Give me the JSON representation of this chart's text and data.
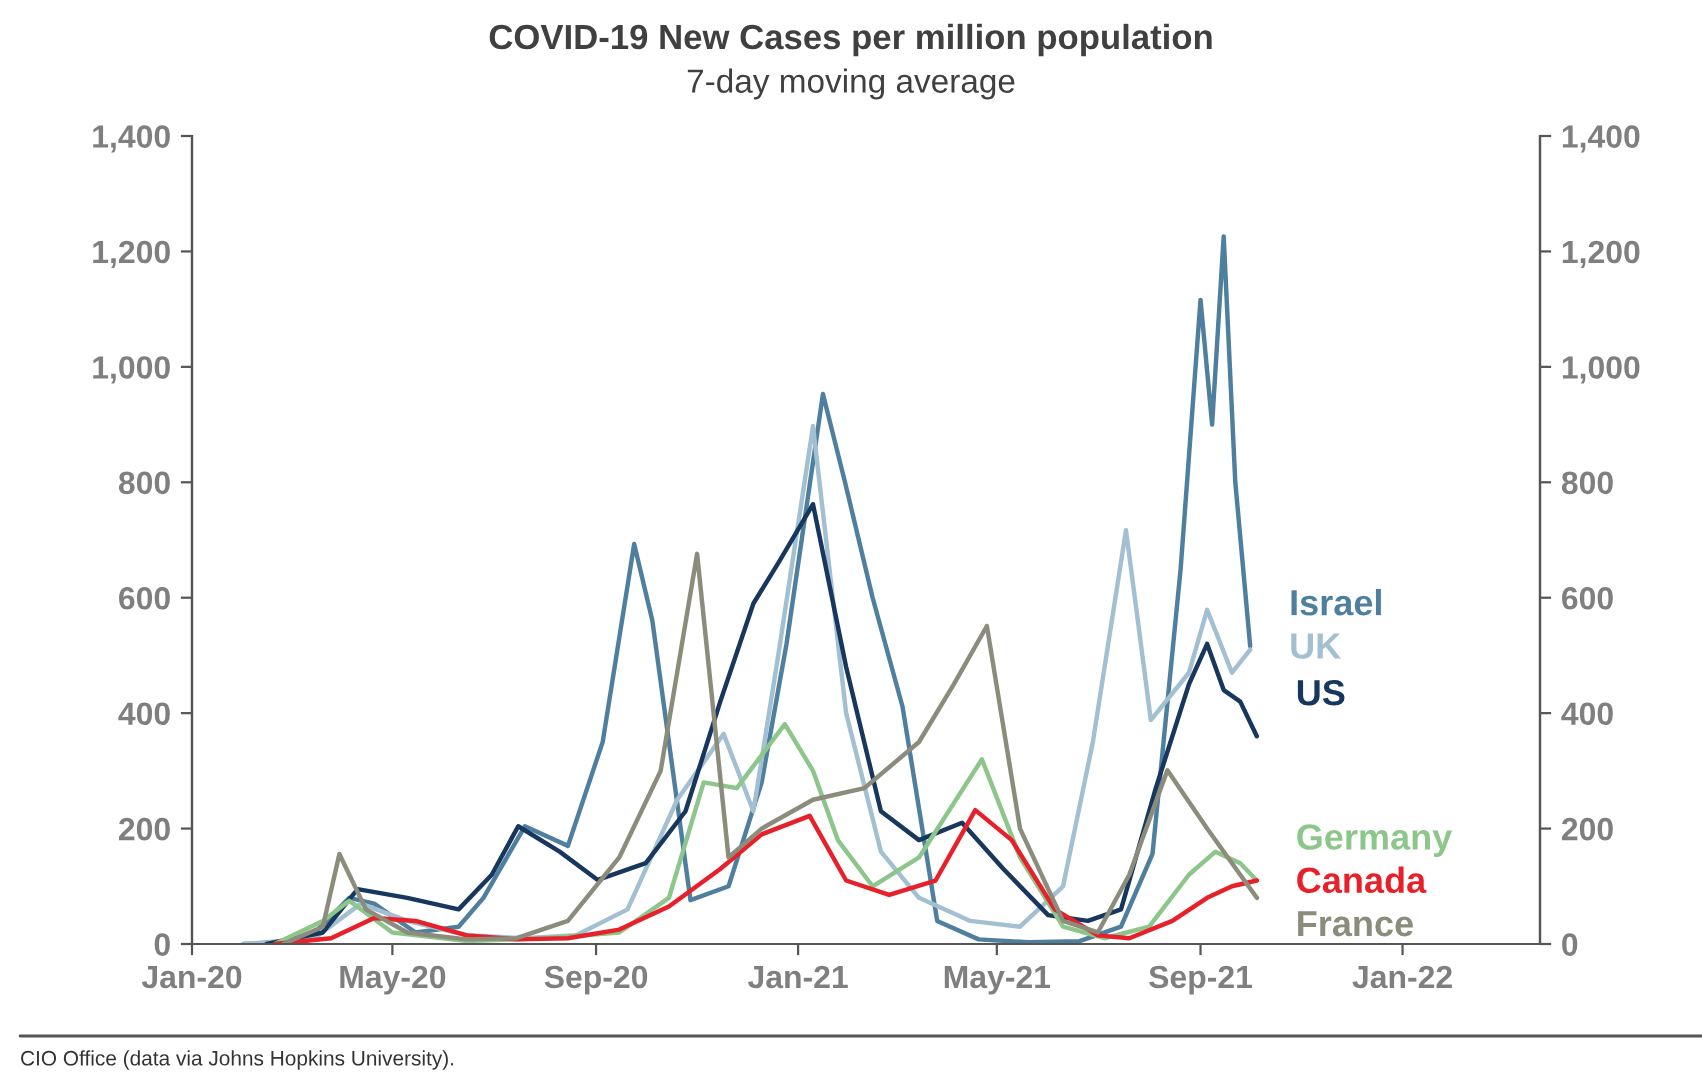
{
  "chart_data": {
    "type": "line",
    "title": "COVID-19 New Cases per million population",
    "subtitle": "7-day moving average",
    "annotations": [
      "CIO Office (data via Johns Hopkins University)."
    ],
    "legend": false,
    "grid": false,
    "marker": "none",
    "line_style": "solid",
    "xlim": [
      "2020-01-01",
      "2022-03-25"
    ],
    "xticks": [
      {
        "value": "2020-01-01",
        "label": "Jan-20"
      },
      {
        "value": "2020-05-01",
        "label": "May-20"
      },
      {
        "value": "2020-09-01",
        "label": "Sep-20"
      },
      {
        "value": "2021-01-01",
        "label": "Jan-21"
      },
      {
        "value": "2021-05-01",
        "label": "May-21"
      },
      {
        "value": "2021-09-01",
        "label": "Sep-21"
      },
      {
        "value": "2022-01-01",
        "label": "Jan-22"
      }
    ],
    "ylim": [
      0,
      1400
    ],
    "yticks": [
      {
        "value": 0,
        "label": "0"
      },
      {
        "value": 200,
        "label": "200"
      },
      {
        "value": 400,
        "label": "400"
      },
      {
        "value": 600,
        "label": "600"
      },
      {
        "value": 800,
        "label": "800"
      },
      {
        "value": 1000,
        "label": "1,000"
      },
      {
        "value": 1200,
        "label": "1,200"
      },
      {
        "value": 1400,
        "label": "1,400"
      }
    ],
    "y2lim": [
      0,
      1400
    ],
    "y2ticks": [
      {
        "value": 0,
        "label": "0"
      },
      {
        "value": 200,
        "label": "200"
      },
      {
        "value": 400,
        "label": "400"
      },
      {
        "value": 600,
        "label": "600"
      },
      {
        "value": 800,
        "label": "800"
      },
      {
        "value": 1000,
        "label": "1,000"
      },
      {
        "value": 1200,
        "label": "1,200"
      },
      {
        "value": 1400,
        "label": "1,400"
      }
    ],
    "series": [
      {
        "name": "Israel",
        "color": "#4f7f9f",
        "x": [
          "2020-02-01",
          "2020-03-10",
          "2020-04-05",
          "2020-04-20",
          "2020-05-15",
          "2020-06-10",
          "2020-06-25",
          "2020-07-20",
          "2020-08-15",
          "2020-09-05",
          "2020-09-24",
          "2020-10-05",
          "2020-10-28",
          "2020-11-20",
          "2020-12-10",
          "2020-12-25",
          "2021-01-16",
          "2021-01-29",
          "2021-02-15",
          "2021-03-05",
          "2021-03-26",
          "2021-04-20",
          "2021-05-20",
          "2021-06-20",
          "2021-07-15",
          "2021-08-03",
          "2021-08-20",
          "2021-09-01",
          "2021-09-08",
          "2021-09-15",
          "2021-09-22",
          "2021-10-01"
        ],
        "values": [
          0,
          5,
          80,
          70,
          20,
          30,
          80,
          204,
          170,
          350,
          693,
          560,
          76,
          100,
          280,
          520,
          953,
          804,
          600,
          412,
          40,
          8,
          3,
          5,
          30,
          156,
          650,
          1116,
          900,
          1226,
          800,
          516
        ]
      },
      {
        "name": "UK",
        "color": "#a3bfd2",
        "x": [
          "2020-02-01",
          "2020-03-15",
          "2020-04-12",
          "2020-05-10",
          "2020-06-15",
          "2020-07-20",
          "2020-08-20",
          "2020-09-20",
          "2020-10-20",
          "2020-11-17",
          "2020-12-05",
          "2020-12-20",
          "2021-01-10",
          "2021-01-30",
          "2021-02-20",
          "2021-03-15",
          "2021-04-15",
          "2021-05-15",
          "2021-06-10",
          "2021-06-28",
          "2021-07-18",
          "2021-08-02",
          "2021-08-25",
          "2021-09-05",
          "2021-09-20",
          "2021-10-01"
        ],
        "values": [
          0,
          10,
          70,
          40,
          15,
          10,
          15,
          60,
          250,
          364,
          230,
          500,
          897,
          400,
          160,
          80,
          40,
          30,
          100,
          350,
          717,
          388,
          470,
          579,
          470,
          510
        ]
      },
      {
        "name": "US",
        "color": "#17375e",
        "x": [
          "2020-02-15",
          "2020-03-20",
          "2020-04-10",
          "2020-05-10",
          "2020-06-10",
          "2020-06-30",
          "2020-07-16",
          "2020-08-10",
          "2020-09-02",
          "2020-10-01",
          "2020-10-25",
          "2020-11-15",
          "2020-12-05",
          "2020-12-20",
          "2021-01-10",
          "2021-01-30",
          "2021-02-20",
          "2021-03-15",
          "2021-04-10",
          "2021-05-05",
          "2021-06-01",
          "2021-06-25",
          "2021-07-15",
          "2021-08-05",
          "2021-08-25",
          "2021-09-05",
          "2021-09-15",
          "2021-09-25",
          "2021-10-05"
        ],
        "values": [
          0,
          20,
          95,
          80,
          60,
          120,
          204,
          160,
          111,
          140,
          230,
          420,
          590,
          660,
          762,
          480,
          230,
          180,
          210,
          130,
          50,
          40,
          60,
          270,
          450,
          520,
          440,
          420,
          360
        ]
      },
      {
        "name": "Germany",
        "color": "#8dc68a",
        "x": [
          "2020-02-20",
          "2020-03-20",
          "2020-04-05",
          "2020-05-01",
          "2020-06-15",
          "2020-08-01",
          "2020-09-15",
          "2020-10-15",
          "2020-11-05",
          "2020-11-25",
          "2020-12-24",
          "2021-01-10",
          "2021-01-25",
          "2021-02-15",
          "2021-03-15",
          "2021-04-22",
          "2021-05-15",
          "2021-06-10",
          "2021-07-05",
          "2021-08-01",
          "2021-08-25",
          "2021-09-10",
          "2021-09-25",
          "2021-10-05"
        ],
        "values": [
          0,
          40,
          75,
          20,
          5,
          10,
          20,
          80,
          280,
          270,
          381,
          300,
          180,
          100,
          150,
          320,
          150,
          30,
          10,
          30,
          120,
          160,
          140,
          110
        ]
      },
      {
        "name": "Canada",
        "color": "#e8202a",
        "x": [
          "2020-02-20",
          "2020-03-25",
          "2020-04-20",
          "2020-05-15",
          "2020-06-15",
          "2020-07-15",
          "2020-08-15",
          "2020-09-15",
          "2020-10-15",
          "2020-11-15",
          "2020-12-10",
          "2021-01-08",
          "2021-01-30",
          "2021-02-25",
          "2021-03-25",
          "2021-04-18",
          "2021-05-10",
          "2021-06-05",
          "2021-07-01",
          "2021-07-20",
          "2021-08-15",
          "2021-09-05",
          "2021-09-20",
          "2021-10-05"
        ],
        "values": [
          0,
          10,
          45,
          40,
          15,
          8,
          10,
          25,
          65,
          130,
          190,
          222,
          110,
          85,
          110,
          232,
          180,
          60,
          15,
          10,
          40,
          80,
          100,
          110
        ]
      },
      {
        "name": "France",
        "color": "#8c8c7c",
        "x": [
          "2020-02-25",
          "2020-03-20",
          "2020-03-30",
          "2020-04-15",
          "2020-05-10",
          "2020-06-15",
          "2020-07-15",
          "2020-08-15",
          "2020-09-15",
          "2020-10-10",
          "2020-11-01",
          "2020-11-20",
          "2020-12-10",
          "2021-01-10",
          "2021-02-10",
          "2021-03-15",
          "2021-04-05",
          "2021-04-25",
          "2021-05-15",
          "2021-06-10",
          "2021-07-01",
          "2021-07-20",
          "2021-08-12",
          "2021-09-05",
          "2021-09-25",
          "2021-10-05"
        ],
        "values": [
          0,
          30,
          156,
          60,
          20,
          8,
          10,
          40,
          150,
          300,
          676,
          150,
          200,
          250,
          270,
          350,
          450,
          551,
          200,
          40,
          20,
          120,
          301,
          200,
          120,
          80
        ]
      }
    ]
  }
}
